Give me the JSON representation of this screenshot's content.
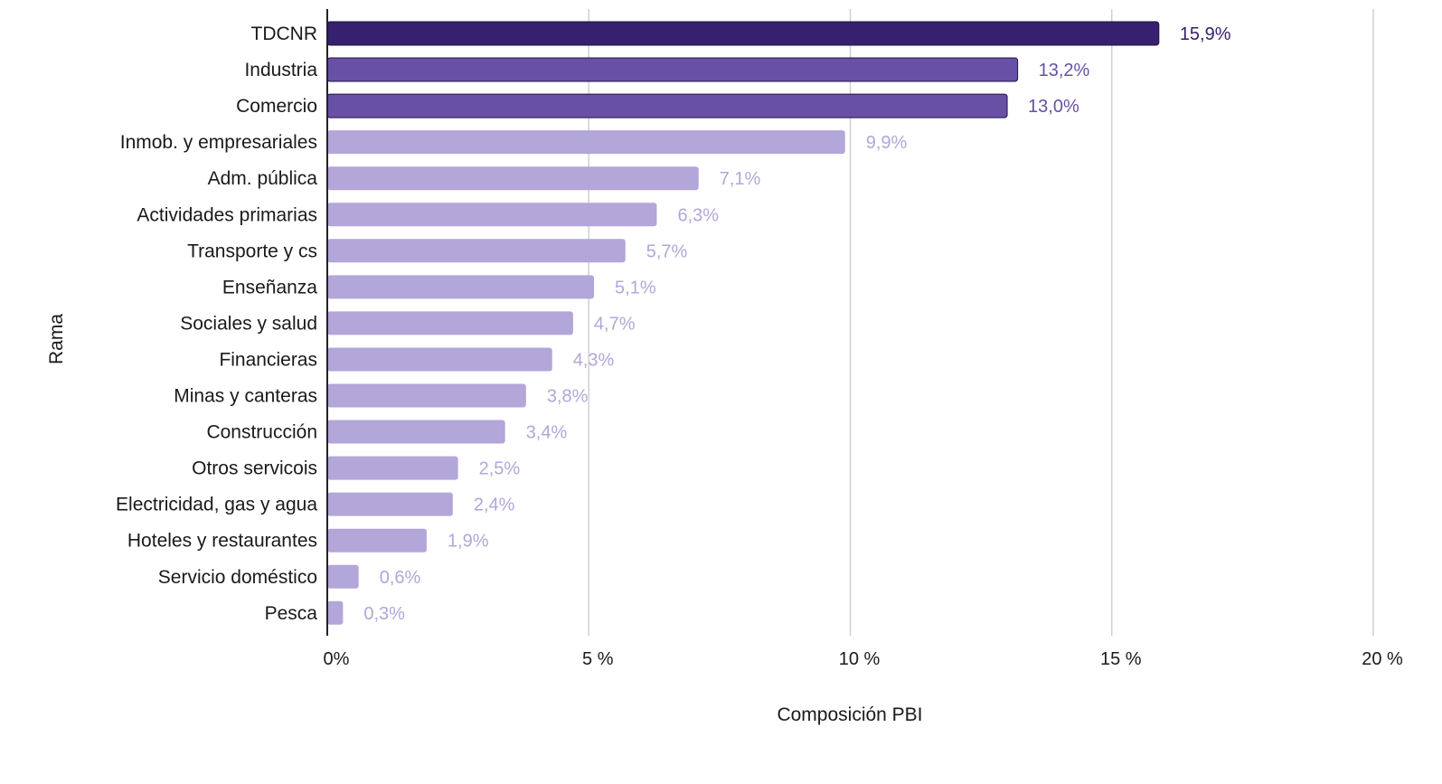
{
  "chart_data": {
    "type": "bar",
    "orientation": "horizontal",
    "xlabel": "Composición PBI",
    "ylabel": "Rama",
    "xlim": [
      0,
      20
    ],
    "ticks": [
      {
        "value": 0,
        "label": "0%"
      },
      {
        "value": 5,
        "label": "5 %"
      },
      {
        "value": 10,
        "label": "10 %"
      },
      {
        "value": 15,
        "label": "15 %"
      },
      {
        "value": 20,
        "label": "20 %"
      }
    ],
    "grid": "vertical",
    "bars": [
      {
        "category": "TDCNR",
        "value": 15.9,
        "label": "15,9%",
        "tier": "dark"
      },
      {
        "category": "Industria",
        "value": 13.2,
        "label": "13,2%",
        "tier": "mid"
      },
      {
        "category": "Comercio",
        "value": 13.0,
        "label": "13,0%",
        "tier": "mid"
      },
      {
        "category": "Inmob. y empresariales",
        "value": 9.9,
        "label": "9,9%",
        "tier": "light"
      },
      {
        "category": "Adm. pública",
        "value": 7.1,
        "label": "7,1%",
        "tier": "light"
      },
      {
        "category": "Actividades primarias",
        "value": 6.3,
        "label": "6,3%",
        "tier": "light"
      },
      {
        "category": "Transporte y cs",
        "value": 5.7,
        "label": "5,7%",
        "tier": "light"
      },
      {
        "category": "Enseñanza",
        "value": 5.1,
        "label": "5,1%",
        "tier": "light"
      },
      {
        "category": "Sociales y salud",
        "value": 4.7,
        "label": "4,7%",
        "tier": "light"
      },
      {
        "category": "Financieras",
        "value": 4.3,
        "label": "4,3%",
        "tier": "light"
      },
      {
        "category": "Minas y canteras",
        "value": 3.8,
        "label": "3,8%",
        "tier": "light"
      },
      {
        "category": "Construcción",
        "value": 3.4,
        "label": "3,4%",
        "tier": "light"
      },
      {
        "category": "Otros servicois",
        "value": 2.5,
        "label": "2,5%",
        "tier": "light"
      },
      {
        "category": "Electricidad, gas y agua",
        "value": 2.4,
        "label": "2,4%",
        "tier": "light"
      },
      {
        "category": "Hoteles y restaurantes",
        "value": 1.9,
        "label": "1,9%",
        "tier": "light"
      },
      {
        "category": "Servicio doméstico",
        "value": 0.6,
        "label": "0,6%",
        "tier": "light"
      },
      {
        "category": "Pesca",
        "value": 0.3,
        "label": "0,3%",
        "tier": "light"
      }
    ],
    "colors": {
      "dark": "#36206f",
      "mid": "#6750a6",
      "light": "#b3a6d8",
      "grid": "#d0d0d0",
      "axis": "#222222"
    }
  }
}
